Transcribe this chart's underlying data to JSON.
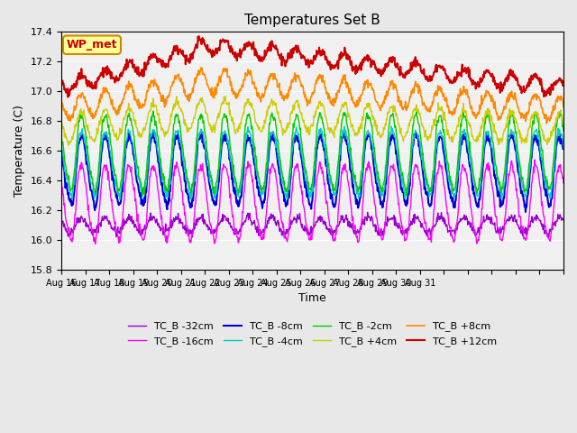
{
  "title": "Temperatures Set B",
  "xlabel": "Time",
  "ylabel": "Temperature (C)",
  "ylim": [
    15.8,
    17.4
  ],
  "background_color": "#e8e8e8",
  "plot_bg": "#f0f0f0",
  "annotation_text": "WP_met",
  "annotation_bg": "#ffff99",
  "annotation_border": "#cc8800",
  "annotation_text_color": "#cc0000",
  "colors": {
    "TC_B -32cm": "#9900cc",
    "TC_B -16cm": "#ff00ff",
    "TC_B -8cm": "#0000dd",
    "TC_B -4cm": "#00cccc",
    "TC_B -2cm": "#00cc00",
    "TC_B +4cm": "#cccc00",
    "TC_B +8cm": "#ff8800",
    "TC_B +12cm": "#cc0000"
  },
  "lws": {
    "TC_B -32cm": 1.0,
    "TC_B -16cm": 1.0,
    "TC_B -8cm": 1.5,
    "TC_B -4cm": 1.0,
    "TC_B -2cm": 1.0,
    "TC_B +4cm": 1.0,
    "TC_B +8cm": 1.2,
    "TC_B +12cm": 1.5
  },
  "xtick_labels": [
    "Aug 16",
    "Aug 17",
    "Aug 18",
    "Aug 19",
    "Aug 20",
    "Aug 21",
    "Aug 22",
    "Aug 23",
    "Aug 24",
    "Aug 25",
    "Aug 26",
    "Aug 27",
    "Aug 28",
    "Aug 29",
    "Aug 30",
    "Aug 31"
  ],
  "ytick_vals": [
    15.8,
    16.0,
    16.2,
    16.4,
    16.6,
    16.8,
    17.0,
    17.2,
    17.4
  ],
  "series_params": {
    "TC_B -32cm": {
      "base": 16.1,
      "day_amp": 0.05,
      "warm_add": 0.0
    },
    "TC_B -16cm": {
      "base": 16.28,
      "day_amp": 0.22,
      "warm_add": 0.0
    },
    "TC_B -8cm": {
      "base": 16.5,
      "day_amp": 0.2,
      "warm_add": 0.0
    },
    "TC_B -4cm": {
      "base": 16.55,
      "day_amp": 0.18,
      "warm_add": 0.0
    },
    "TC_B -2cm": {
      "base": 16.62,
      "day_amp": 0.22,
      "warm_add": 0.0
    },
    "TC_B +4cm": {
      "base": 16.75,
      "day_amp": 0.1,
      "warm_add": 0.08
    },
    "TC_B +8cm": {
      "base": 16.88,
      "day_amp": 0.08,
      "warm_add": 0.15
    },
    "TC_B +12cm": {
      "base": 17.03,
      "day_amp": 0.05,
      "warm_add": 0.22
    }
  }
}
